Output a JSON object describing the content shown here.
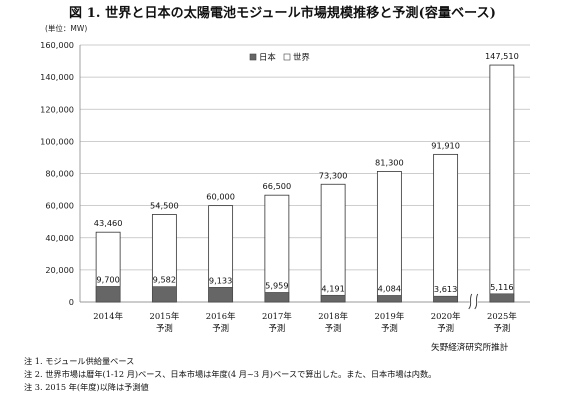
{
  "figure": {
    "title": "図 1. 世界と日本の太陽電池モジュール市場規模推移と予測(容量ベース)",
    "unit_label": "(単位：MW)",
    "source": "矢野経済研究所推計",
    "notes": [
      "注 1. モジュール供給量ベース",
      "注 2. 世界市場は暦年(1-12 月)ベース、日本市場は年度(4 月~3 月)ベースで算出した。また、日本市場は内数。",
      "注 3. 2015 年(年度)以降は予測値"
    ]
  },
  "chart_data": {
    "type": "bar",
    "title": "図 1. 世界と日本の太陽電池モジュール市場規模推移と予測(容量ベース)",
    "ylabel": "(単位：MW)",
    "xlabel": "",
    "ylim": [
      0,
      160000
    ],
    "yticks": [
      0,
      20000,
      40000,
      60000,
      80000,
      100000,
      120000,
      140000,
      160000
    ],
    "ytick_labels": [
      "0",
      "20,000",
      "40,000",
      "60,000",
      "80,000",
      "100,000",
      "120,000",
      "140,000",
      "160,000"
    ],
    "grid": true,
    "legend_position": "top-center",
    "category_labels": [
      [
        "2014年"
      ],
      [
        "2015年",
        "予測"
      ],
      [
        "2016年",
        "予測"
      ],
      [
        "2017年",
        "予測"
      ],
      [
        "2018年",
        "予測"
      ],
      [
        "2019年",
        "予測"
      ],
      [
        "2020年",
        "予測"
      ],
      [
        "2025年",
        "予測"
      ]
    ],
    "series": [
      {
        "name": "日本",
        "color": "#666666",
        "values": [
          9700,
          9582,
          9133,
          5959,
          4191,
          4084,
          3613,
          5116
        ],
        "labels": [
          "9,700",
          "9,582",
          "9,133",
          "5,959",
          "4,191",
          "4,084",
          "3,613",
          "5,116"
        ]
      },
      {
        "name": "世界",
        "color": "#ffffff",
        "values": [
          43460,
          54500,
          60000,
          66500,
          73300,
          81300,
          91910,
          147510
        ],
        "labels": [
          "43,460",
          "54,500",
          "60,000",
          "66,500",
          "73,300",
          "81,300",
          "91,910",
          "147,510"
        ]
      }
    ]
  }
}
